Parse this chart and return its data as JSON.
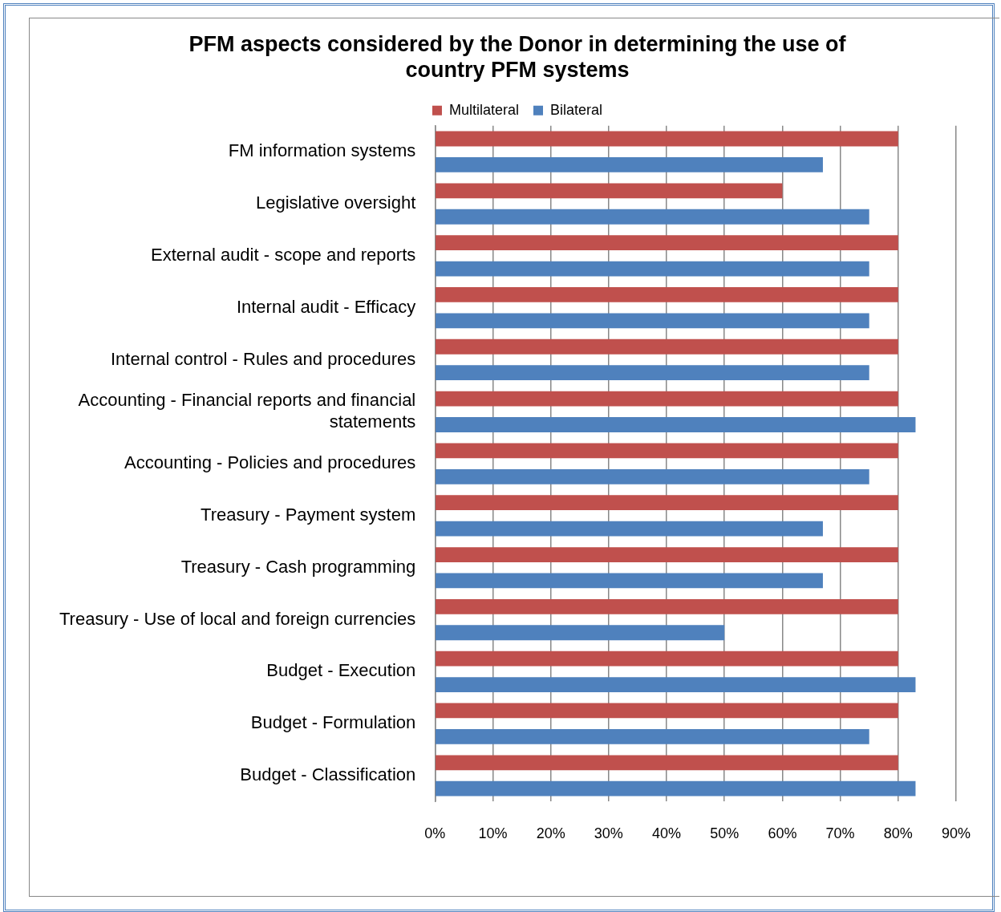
{
  "chart_data": {
    "type": "bar",
    "orientation": "horizontal",
    "title": "PFM aspects considered by the Donor in determining the use of country PFM systems",
    "categories": [
      "FM information systems",
      "Legislative oversight",
      "External audit - scope and reports",
      "Internal audit - Efficacy",
      "Internal control - Rules and procedures",
      "Accounting - Financial reports and financial statements",
      "Accounting - Policies and procedures",
      "Treasury - Payment system",
      "Treasury - Cash programming",
      "Treasury - Use of local and foreign currencies",
      "Budget - Execution",
      "Budget - Formulation",
      "Budget - Classification"
    ],
    "series": [
      {
        "name": "Multilateral",
        "color": "#c0504d",
        "values": [
          80,
          60,
          80,
          80,
          80,
          80,
          80,
          80,
          80,
          80,
          80,
          80,
          80
        ]
      },
      {
        "name": "Bilateral",
        "color": "#4f81bd",
        "values": [
          67,
          75,
          75,
          75,
          75,
          83,
          75,
          67,
          67,
          50,
          83,
          75,
          83
        ]
      }
    ],
    "xlim": [
      0,
      90
    ],
    "xticks": [
      {
        "value": 0,
        "label": "0%"
      },
      {
        "value": 10,
        "label": "10%"
      },
      {
        "value": 20,
        "label": "20%"
      },
      {
        "value": 30,
        "label": "30%"
      },
      {
        "value": 40,
        "label": "40%"
      },
      {
        "value": 50,
        "label": "50%"
      },
      {
        "value": 60,
        "label": "60%"
      },
      {
        "value": 70,
        "label": "70%"
      },
      {
        "value": 80,
        "label": "80%"
      },
      {
        "value": 90,
        "label": "90%"
      }
    ],
    "grid": "x",
    "legend": "top"
  }
}
